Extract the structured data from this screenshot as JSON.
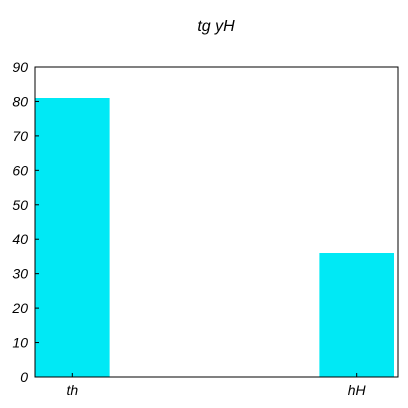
{
  "chart_data": {
    "type": "bar",
    "title": "tg yH",
    "xlabel": "",
    "ylabel": "",
    "categories": [
      "th",
      "hH"
    ],
    "values": [
      81,
      36
    ],
    "ylim": [
      0,
      90
    ],
    "yticks": [
      0,
      10,
      20,
      30,
      40,
      50,
      60,
      70,
      80,
      90
    ],
    "grid": false,
    "legend": "none",
    "bar_color": "#00E9F5",
    "axis_color": "#000000"
  }
}
